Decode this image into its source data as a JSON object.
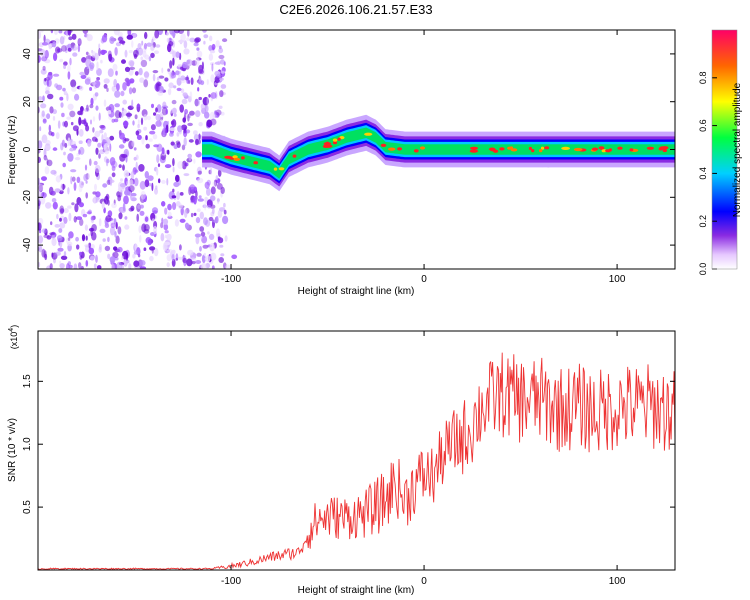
{
  "title": "C2E6.2026.106.21.57.E33",
  "chart_data": [
    {
      "type": "heatmap",
      "name": "spectrogram",
      "xlabel": "Height of straight line (km)",
      "ylabel": "Frequency (Hz)",
      "xlim": [
        -200,
        130
      ],
      "ylim": [
        -50,
        50
      ],
      "xticks": [
        "-100",
        "0",
        "100"
      ],
      "xtick_values": [
        -100,
        0,
        100
      ],
      "yticks": [
        "-40",
        "-20",
        "0",
        "20",
        "40"
      ],
      "ytick_values": [
        -40,
        -20,
        0,
        20,
        40
      ],
      "noise_region_x": [
        -200,
        -103
      ],
      "ridge": {
        "start_x": -115,
        "x": [
          -115,
          -110,
          -100,
          -90,
          -80,
          -75,
          -70,
          -60,
          -50,
          -40,
          -30,
          -25,
          -20,
          -10,
          0,
          10,
          20,
          40,
          60,
          80,
          100,
          130
        ],
        "y": [
          0,
          0,
          -3,
          -5,
          -7,
          -10,
          -4,
          0,
          2,
          5,
          7,
          5,
          1,
          0,
          0,
          0,
          0,
          0,
          0,
          0,
          0,
          0
        ]
      },
      "colorbar": {
        "label": "Normalized spectral amplitude",
        "range": [
          0.0,
          1.0
        ],
        "ticks": [
          "0.0",
          "0.2",
          "0.4",
          "0.6",
          "0.8"
        ],
        "tick_values": [
          0.0,
          0.2,
          0.4,
          0.6,
          0.8
        ]
      }
    },
    {
      "type": "line",
      "name": "snr",
      "xlabel": "Height of straight line (km)",
      "ylabel": "SNR (10 * v/v)",
      "y_multiplier": "(x10",
      "y_multiplier_exp": "4",
      "y_multiplier_close": ")",
      "xlim": [
        -200,
        130
      ],
      "ylim": [
        0,
        1.9
      ],
      "xticks": [
        "-100",
        "0",
        "100"
      ],
      "xtick_values": [
        -100,
        0,
        100
      ],
      "yticks": [
        "0.5",
        "1.0",
        "1.5"
      ],
      "ytick_values": [
        0.5,
        1.0,
        1.5
      ],
      "series": [
        {
          "name": "SNR",
          "color": "#ee3333",
          "x": [
            -200,
            -150,
            -110,
            -100,
            -90,
            -80,
            -70,
            -65,
            -60,
            -55,
            -50,
            -40,
            -30,
            -20,
            -15,
            -10,
            -5,
            0,
            5,
            10,
            15,
            20,
            25,
            30,
            40,
            50,
            60,
            70,
            80,
            90,
            100,
            110,
            120,
            130
          ],
          "y": [
            0.01,
            0.01,
            0.01,
            0.03,
            0.06,
            0.1,
            0.13,
            0.14,
            0.3,
            0.4,
            0.42,
            0.42,
            0.45,
            0.55,
            0.7,
            0.55,
            0.68,
            0.75,
            0.75,
            0.92,
            1.0,
            1.05,
            1.15,
            1.3,
            1.4,
            1.35,
            1.35,
            1.28,
            1.3,
            1.25,
            1.3,
            1.3,
            1.3,
            1.25
          ],
          "noise_amplitude": [
            0.005,
            0.005,
            0.005,
            0.02,
            0.03,
            0.04,
            0.05,
            0.05,
            0.15,
            0.18,
            0.18,
            0.18,
            0.2,
            0.25,
            0.25,
            0.25,
            0.25,
            0.25,
            0.25,
            0.25,
            0.28,
            0.3,
            0.32,
            0.32,
            0.35,
            0.35,
            0.35,
            0.35,
            0.35,
            0.35,
            0.35,
            0.35,
            0.35,
            0.35
          ]
        }
      ]
    }
  ]
}
